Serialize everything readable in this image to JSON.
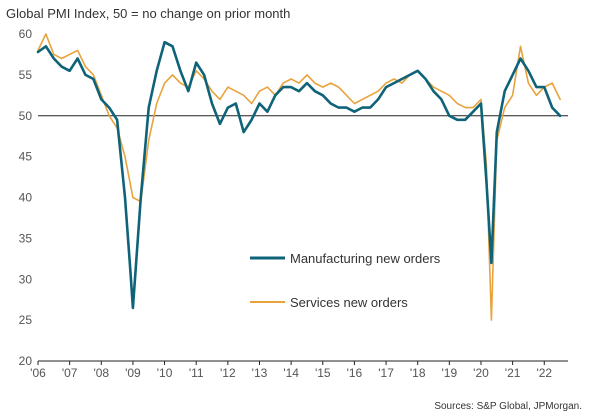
{
  "title": "Global PMI Index, 50 = no change on prior month",
  "source": "Sources: S&P Global, JPMorgan.",
  "chart_data": {
    "type": "line",
    "title": "Global PMI Index, 50 = no change on prior month",
    "xlabel": "",
    "ylabel": "",
    "xlim": [
      2006.0,
      2022.75
    ],
    "ylim": [
      20,
      60
    ],
    "yticks": [
      20,
      25,
      30,
      35,
      40,
      45,
      50,
      55,
      60
    ],
    "xtick_labels": [
      "'06",
      "'07",
      "'08",
      "'09",
      "'10",
      "'11",
      "'12",
      "'13",
      "'14",
      "'15",
      "'16",
      "'17",
      "'18",
      "'19",
      "'20",
      "'21",
      "'22"
    ],
    "xtick_values": [
      2006,
      2007,
      2008,
      2009,
      2010,
      2011,
      2012,
      2013,
      2014,
      2015,
      2016,
      2017,
      2018,
      2019,
      2020,
      2021,
      2022
    ],
    "reference_line": 50,
    "legend_position": "center-right",
    "series": [
      {
        "name": "Manufacturing new orders",
        "color": "#0f6378",
        "x": [
          2006.0,
          2006.25,
          2006.5,
          2006.75,
          2007.0,
          2007.25,
          2007.5,
          2007.75,
          2008.0,
          2008.25,
          2008.5,
          2008.75,
          2008.92,
          2009.0,
          2009.25,
          2009.5,
          2009.75,
          2010.0,
          2010.25,
          2010.5,
          2010.75,
          2011.0,
          2011.25,
          2011.5,
          2011.75,
          2012.0,
          2012.25,
          2012.5,
          2012.75,
          2013.0,
          2013.25,
          2013.5,
          2013.75,
          2014.0,
          2014.25,
          2014.5,
          2014.75,
          2015.0,
          2015.25,
          2015.5,
          2015.75,
          2016.0,
          2016.25,
          2016.5,
          2016.75,
          2017.0,
          2017.25,
          2017.5,
          2017.75,
          2018.0,
          2018.25,
          2018.5,
          2018.75,
          2019.0,
          2019.25,
          2019.5,
          2019.75,
          2020.0,
          2020.17,
          2020.33,
          2020.5,
          2020.75,
          2021.0,
          2021.25,
          2021.5,
          2021.75,
          2022.0,
          2022.25,
          2022.5
        ],
        "values": [
          57.8,
          58.5,
          57.0,
          56.0,
          55.5,
          57.0,
          55.0,
          54.5,
          52.0,
          51.0,
          49.5,
          40.0,
          31.0,
          26.5,
          40.0,
          51.0,
          55.5,
          59.0,
          58.5,
          55.5,
          53.0,
          56.5,
          55.0,
          51.5,
          49.0,
          51.0,
          51.5,
          48.0,
          49.5,
          51.5,
          50.5,
          52.5,
          53.5,
          53.5,
          53.0,
          54.0,
          53.0,
          52.5,
          51.5,
          51.0,
          51.0,
          50.5,
          51.0,
          51.0,
          52.0,
          53.5,
          54.0,
          54.5,
          55.0,
          55.5,
          54.5,
          53.0,
          52.0,
          50.0,
          49.5,
          49.5,
          50.5,
          51.5,
          42.0,
          32.0,
          48.0,
          53.0,
          55.0,
          57.0,
          55.5,
          53.5,
          53.5,
          51.0,
          50.0
        ]
      },
      {
        "name": "Services new orders",
        "color": "#e8a33d",
        "x": [
          2006.0,
          2006.25,
          2006.5,
          2006.75,
          2007.0,
          2007.25,
          2007.5,
          2007.75,
          2008.0,
          2008.25,
          2008.5,
          2008.75,
          2009.0,
          2009.25,
          2009.5,
          2009.75,
          2010.0,
          2010.25,
          2010.5,
          2010.75,
          2011.0,
          2011.25,
          2011.5,
          2011.75,
          2012.0,
          2012.25,
          2012.5,
          2012.75,
          2013.0,
          2013.25,
          2013.5,
          2013.75,
          2014.0,
          2014.25,
          2014.5,
          2014.75,
          2015.0,
          2015.25,
          2015.5,
          2015.75,
          2016.0,
          2016.25,
          2016.5,
          2016.75,
          2017.0,
          2017.25,
          2017.5,
          2017.75,
          2018.0,
          2018.25,
          2018.5,
          2018.75,
          2019.0,
          2019.25,
          2019.5,
          2019.75,
          2020.0,
          2020.17,
          2020.33,
          2020.5,
          2020.75,
          2021.0,
          2021.25,
          2021.5,
          2021.75,
          2022.0,
          2022.25,
          2022.5
        ],
        "values": [
          58.0,
          60.0,
          57.5,
          57.0,
          57.5,
          58.0,
          56.0,
          55.0,
          52.5,
          50.0,
          48.5,
          45.0,
          40.0,
          39.5,
          47.0,
          51.5,
          54.0,
          55.0,
          54.0,
          53.5,
          55.5,
          54.5,
          53.0,
          52.0,
          53.5,
          53.0,
          52.5,
          51.5,
          53.0,
          53.5,
          52.5,
          54.0,
          54.5,
          54.0,
          55.0,
          54.0,
          53.5,
          54.0,
          53.5,
          52.5,
          51.5,
          52.0,
          52.5,
          53.0,
          54.0,
          54.5,
          54.0,
          55.0,
          55.5,
          54.5,
          53.5,
          53.0,
          52.5,
          51.5,
          51.0,
          51.0,
          52.0,
          44.0,
          25.0,
          47.0,
          51.0,
          52.5,
          58.5,
          54.0,
          52.5,
          53.5,
          54.0,
          52.0
        ]
      }
    ]
  }
}
